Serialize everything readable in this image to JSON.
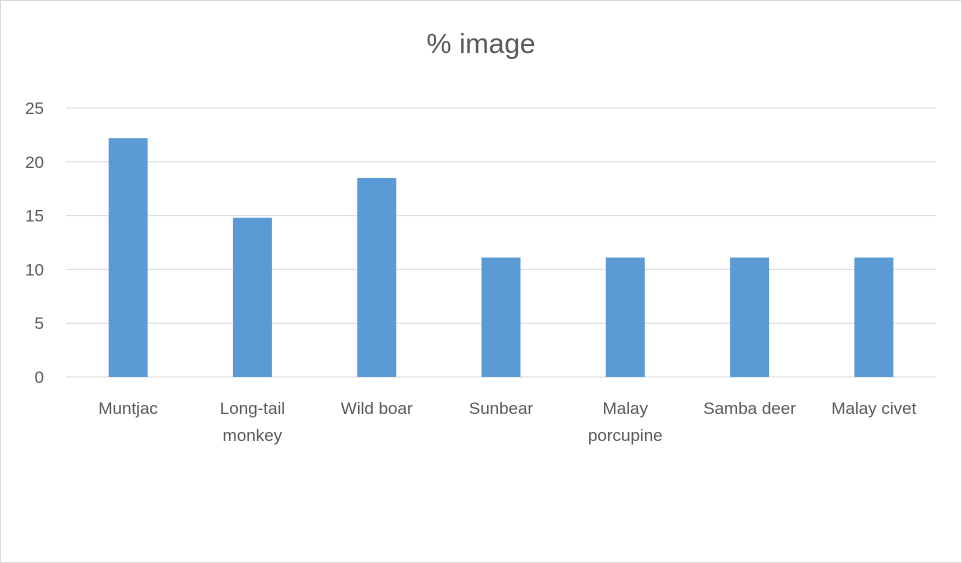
{
  "chart_data": {
    "type": "bar",
    "title": "% image",
    "categories": [
      [
        "Muntjac"
      ],
      [
        "Long-tail",
        "monkey"
      ],
      [
        "Wild boar"
      ],
      [
        "Sunbear"
      ],
      [
        "Malay",
        "porcupine"
      ],
      [
        "Samba deer"
      ],
      [
        "Malay civet"
      ]
    ],
    "values": [
      22.2,
      14.8,
      18.5,
      11.1,
      11.1,
      11.1,
      11.1
    ],
    "ylim": [
      0,
      25
    ],
    "yticks": [
      0,
      5,
      10,
      15,
      20,
      25
    ],
    "grid": true,
    "legend": "none",
    "colors": {
      "bar": "#5b9bd5",
      "grid": "#d9d9d9",
      "text": "#595959"
    }
  }
}
